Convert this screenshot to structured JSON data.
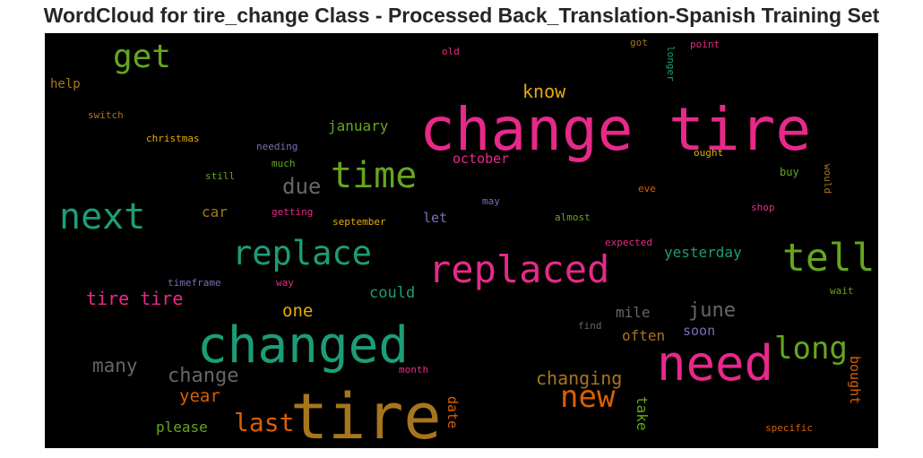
{
  "title": "WordCloud for tire_change Class - Processed Back_Translation-Spanish Training Set",
  "words": [
    {
      "text": "change tire",
      "color": "#e7298a"
    },
    {
      "text": "tire",
      "color": "#a6761d"
    },
    {
      "text": "changed",
      "color": "#1b9e77"
    },
    {
      "text": "need",
      "color": "#e7298a"
    },
    {
      "text": "replaced",
      "color": "#e7298a"
    },
    {
      "text": "next",
      "color": "#1b9e77"
    },
    {
      "text": "replace",
      "color": "#1b9e77"
    },
    {
      "text": "time",
      "color": "#66a61e"
    },
    {
      "text": "tell",
      "color": "#66a61e"
    },
    {
      "text": "get",
      "color": "#66a61e"
    },
    {
      "text": "long",
      "color": "#66a61e"
    },
    {
      "text": "new",
      "color": "#d95f02"
    },
    {
      "text": "last",
      "color": "#d95f02"
    },
    {
      "text": "due",
      "color": "#666666"
    },
    {
      "text": "change",
      "color": "#666666"
    },
    {
      "text": "many",
      "color": "#666666"
    },
    {
      "text": "june",
      "color": "#666666"
    },
    {
      "text": "changing",
      "color": "#a6761d"
    },
    {
      "text": "know",
      "color": "#e6ab02"
    },
    {
      "text": "tire tire",
      "color": "#e7298a"
    },
    {
      "text": "year",
      "color": "#d95f02"
    },
    {
      "text": "one",
      "color": "#e6ab02"
    },
    {
      "text": "could",
      "color": "#1b9e77"
    },
    {
      "text": "january",
      "color": "#66a61e"
    },
    {
      "text": "october",
      "color": "#e7298a"
    },
    {
      "text": "yesterday",
      "color": "#1b9e77"
    },
    {
      "text": "car",
      "color": "#a6761d"
    },
    {
      "text": "let",
      "color": "#7570b3"
    },
    {
      "text": "mile",
      "color": "#666666"
    },
    {
      "text": "soon",
      "color": "#7570b3"
    },
    {
      "text": "often",
      "color": "#a6761d"
    },
    {
      "text": "please",
      "color": "#66a61e"
    },
    {
      "text": "take",
      "color": "#66a61e"
    },
    {
      "text": "date",
      "color": "#d95f02"
    },
    {
      "text": "bought",
      "color": "#d95f02"
    },
    {
      "text": "help",
      "color": "#a6761d"
    },
    {
      "text": "switch",
      "color": "#a6761d"
    },
    {
      "text": "christmas",
      "color": "#e6ab02"
    },
    {
      "text": "needing",
      "color": "#7570b3"
    },
    {
      "text": "much",
      "color": "#66a61e"
    },
    {
      "text": "still",
      "color": "#66a61e"
    },
    {
      "text": "getting",
      "color": "#e7298a"
    },
    {
      "text": "september",
      "color": "#e6ab02"
    },
    {
      "text": "may",
      "color": "#7570b3"
    },
    {
      "text": "almost",
      "color": "#66a61e"
    },
    {
      "text": "eve",
      "color": "#d95f02"
    },
    {
      "text": "buy",
      "color": "#66a61e"
    },
    {
      "text": "would",
      "color": "#a6761d"
    },
    {
      "text": "ought",
      "color": "#e6ab02"
    },
    {
      "text": "shop",
      "color": "#e7298a"
    },
    {
      "text": "expected",
      "color": "#e7298a"
    },
    {
      "text": "wait",
      "color": "#66a61e"
    },
    {
      "text": "timeframe",
      "color": "#7570b3"
    },
    {
      "text": "way",
      "color": "#e7298a"
    },
    {
      "text": "find",
      "color": "#666666"
    },
    {
      "text": "month",
      "color": "#e7298a"
    },
    {
      "text": "specific",
      "color": "#d95f02"
    },
    {
      "text": "old",
      "color": "#e7298a"
    },
    {
      "text": "got",
      "color": "#a6761d"
    },
    {
      "text": "point",
      "color": "#e7298a"
    },
    {
      "text": "longer",
      "color": "#1b9e77"
    }
  ]
}
